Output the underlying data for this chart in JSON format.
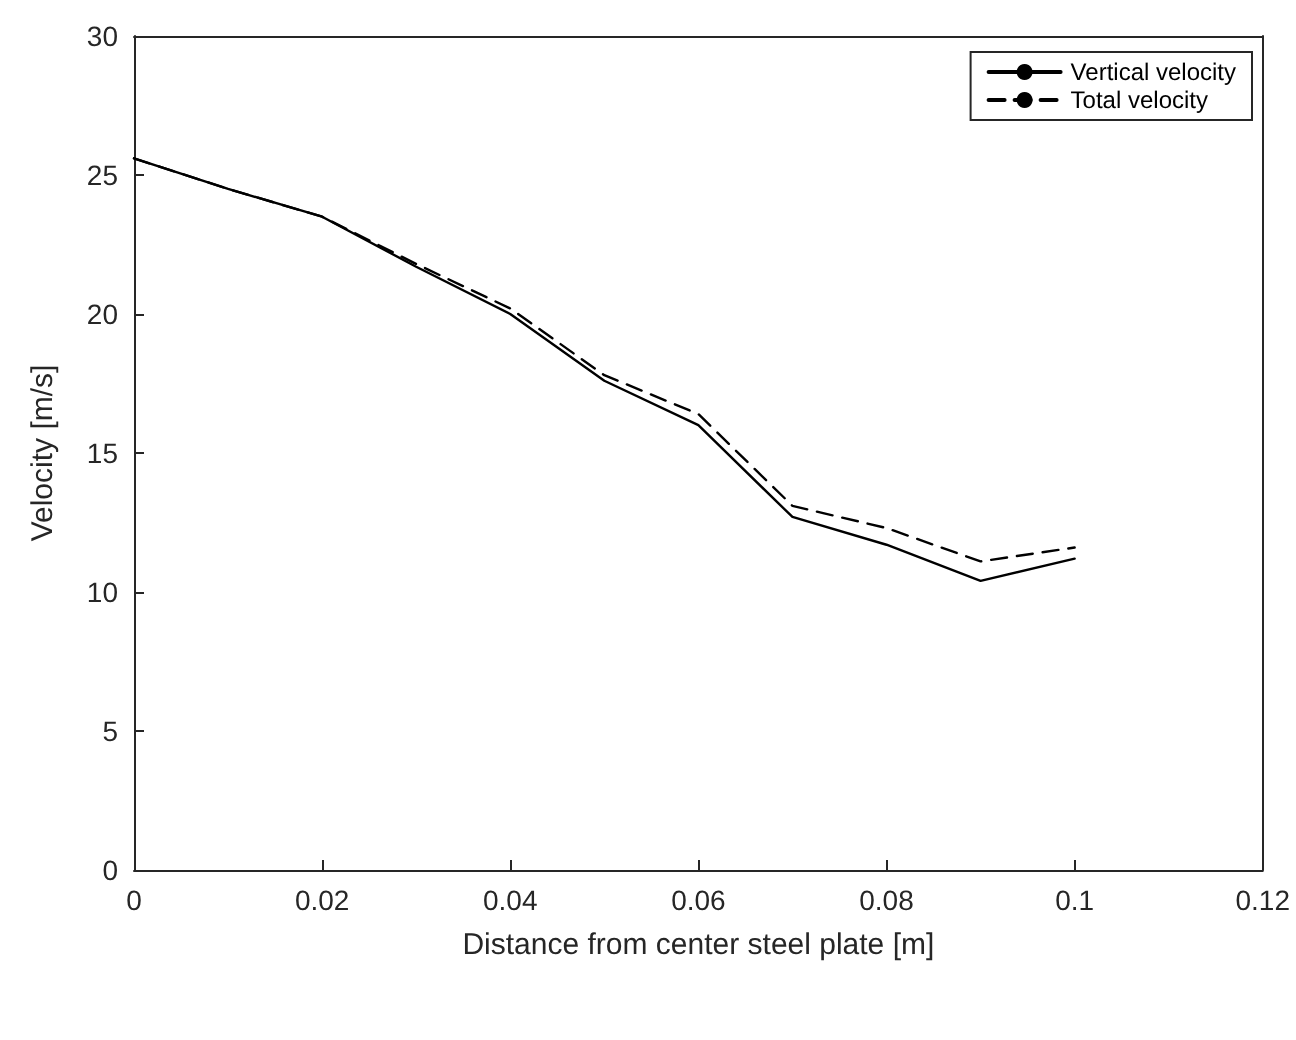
{
  "chart_data": {
    "type": "line",
    "xlabel": "Distance from center steel plate [m]",
    "ylabel": "Velocity [m/s]",
    "x": [
      0,
      0.01,
      0.02,
      0.03,
      0.04,
      0.05,
      0.06,
      0.07,
      0.08,
      0.09,
      0.1
    ],
    "series": [
      {
        "name": "Vertical velocity",
        "color": "#000000",
        "line_style": "solid",
        "values": [
          25.6,
          24.5,
          23.5,
          21.7,
          20.0,
          17.6,
          16.0,
          12.7,
          11.7,
          10.4,
          11.2
        ]
      },
      {
        "name": "Total velocity",
        "color": "#000000",
        "line_style": "dashed",
        "values": [
          25.6,
          24.5,
          23.5,
          21.8,
          20.2,
          17.8,
          16.4,
          13.1,
          12.3,
          11.1,
          11.6
        ]
      }
    ],
    "xlim": [
      0,
      0.12
    ],
    "xticks": [
      0,
      0.02,
      0.04,
      0.06,
      0.08,
      0.1,
      0.12
    ],
    "ylim": [
      0,
      30
    ],
    "yticks": [
      0,
      5,
      10,
      15,
      20,
      25,
      30
    ],
    "grid": false,
    "legend": "top right",
    "marker": "none"
  }
}
